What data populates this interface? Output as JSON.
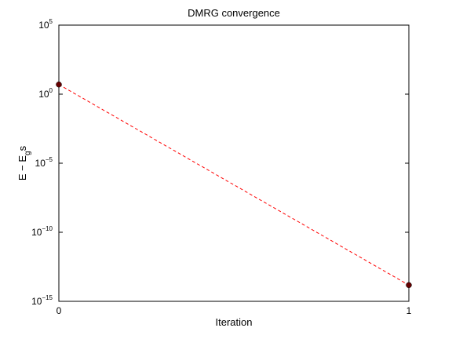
{
  "chart_data": {
    "type": "line",
    "title": "DMRG convergence",
    "xlabel": "Iteration",
    "ylabel": "E − E",
    "ylabel_subscript": "g",
    "ylabel_suffix": "s",
    "x": [
      0,
      1
    ],
    "xlim": [
      0,
      1
    ],
    "x_ticks": [
      "0",
      "1"
    ],
    "yscale": "log",
    "ylim": [
      1e-15,
      100000.0
    ],
    "y_ticks": [
      {
        "value": 100000.0,
        "base": "10",
        "exp": "5"
      },
      {
        "value": 1.0,
        "base": "10",
        "exp": "0"
      },
      {
        "value": 1e-05,
        "base": "10",
        "exp": "−5"
      },
      {
        "value": 1e-10,
        "base": "10",
        "exp": "−10"
      },
      {
        "value": 1e-15,
        "base": "10",
        "exp": "−15"
      }
    ],
    "grid": false,
    "series": [
      {
        "values": [
          5.0,
          1.5e-14
        ],
        "line_color": "#ff0000",
        "line_style": "dashed",
        "marker": "circle",
        "marker_color": "#660000"
      }
    ]
  }
}
